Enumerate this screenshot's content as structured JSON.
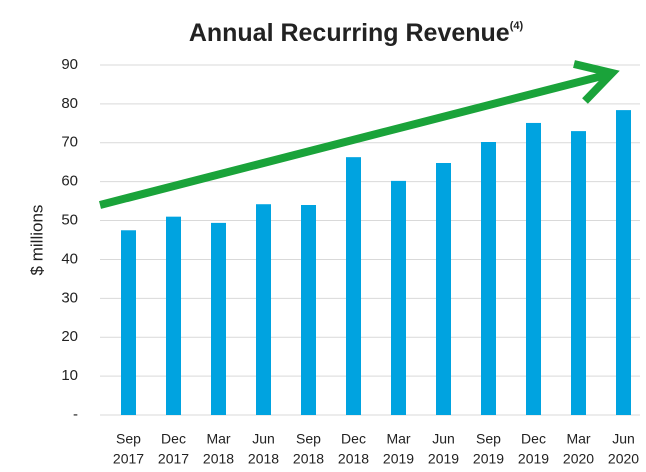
{
  "chart_data": {
    "type": "bar",
    "title": "Annual Recurring Revenue",
    "title_note": "(4)",
    "y_label": "$ millions",
    "categories": [
      [
        "Sep",
        "2017"
      ],
      [
        "Dec",
        "2017"
      ],
      [
        "Mar",
        "2018"
      ],
      [
        "Jun",
        "2018"
      ],
      [
        "Sep",
        "2018"
      ],
      [
        "Dec",
        "2018"
      ],
      [
        "Mar",
        "2019"
      ],
      [
        "Jun",
        "2019"
      ],
      [
        "Sep",
        "2019"
      ],
      [
        "Dec",
        "2019"
      ],
      [
        "Mar",
        "2020"
      ],
      [
        "Jun",
        "2020"
      ]
    ],
    "values": [
      47.5,
      51,
      49.4,
      54.2,
      54,
      66.3,
      60.2,
      64.8,
      70.2,
      75.1,
      73,
      78.4
    ],
    "color": "#00a3e0",
    "ylim": [
      0,
      90
    ],
    "yticks": [
      {
        "value": 0,
        "label": "-"
      },
      10,
      20,
      30,
      40,
      50,
      60,
      70,
      80,
      90
    ],
    "grid": true
  }
}
